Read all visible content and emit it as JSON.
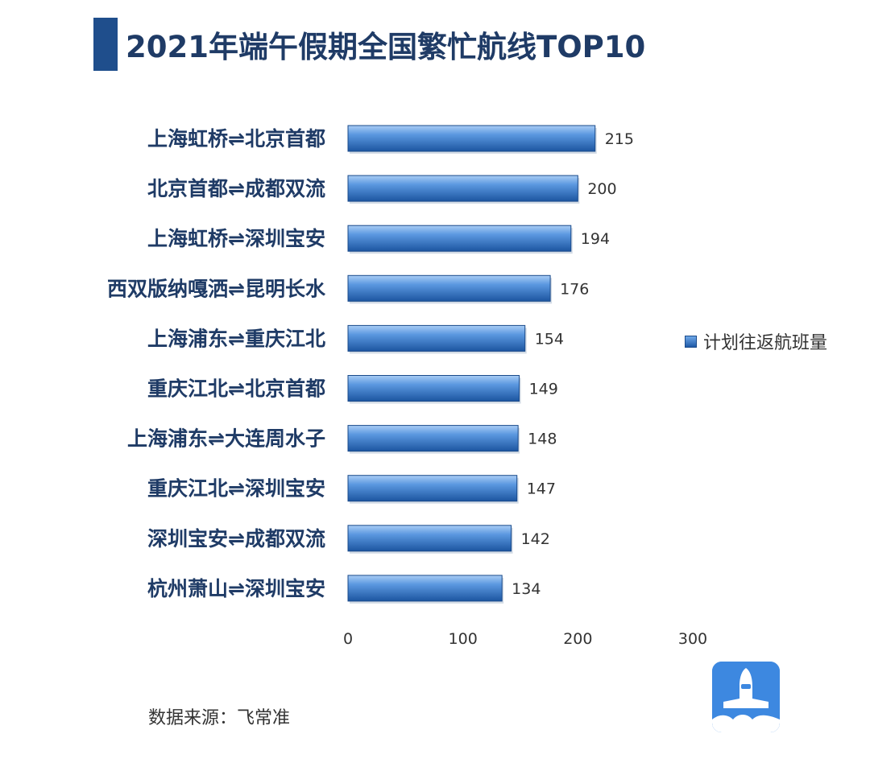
{
  "title": "2021年端午假期全国繁忙航线TOP10",
  "legend_label": "计划往返航班量",
  "source": "数据来源：飞常准",
  "colors": {
    "bar_top": "#7db4ee",
    "bar_bottom": "#1c55a0",
    "title_accent": "#1f4e8c",
    "logo_bg": "#3d88e0"
  },
  "chart_data": {
    "type": "bar",
    "orientation": "horizontal",
    "categories": [
      "上海虹桥⇌北京首都",
      "北京首都⇌成都双流",
      "上海虹桥⇌深圳宝安",
      "西双版纳嘎洒⇌昆明长水",
      "上海浦东⇌重庆江北",
      "重庆江北⇌北京首都",
      "上海浦东⇌大连周水子",
      "重庆江北⇌深圳宝安",
      "深圳宝安⇌成都双流",
      "杭州萧山⇌深圳宝安"
    ],
    "series": [
      {
        "name": "计划往返航班量",
        "values": [
          215,
          200,
          194,
          176,
          154,
          149,
          148,
          147,
          142,
          134
        ]
      }
    ],
    "xlim": [
      0,
      300
    ],
    "xticks": [
      0,
      100,
      200,
      300
    ],
    "grid": false,
    "legend_position": "right"
  }
}
